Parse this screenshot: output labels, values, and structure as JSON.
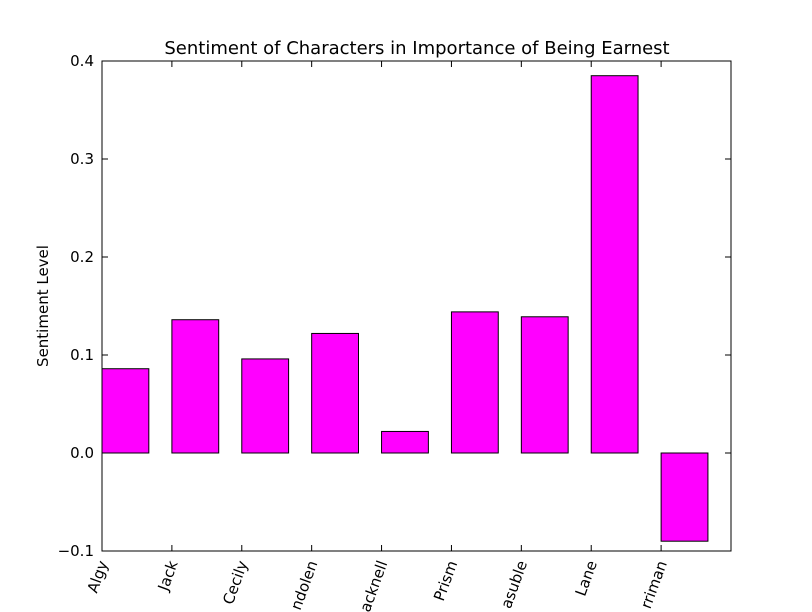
{
  "chart_data": {
    "type": "bar",
    "title": "Sentiment of Characters in Importance of Being Earnest",
    "y_label": "Sentiment Level",
    "categories": [
      "Algy",
      "Jack",
      "Cecily",
      "ndolen",
      "acknell",
      "Prism",
      "asuble",
      "Lane",
      "rriman"
    ],
    "values": [
      0.086,
      0.136,
      0.096,
      0.122,
      0.022,
      0.144,
      0.139,
      0.385,
      -0.09
    ],
    "color": "#ff00ff",
    "ylim": [
      -0.1,
      0.4
    ],
    "yticks": [
      {
        "value": -0.1,
        "label": "−0.1"
      },
      {
        "value": 0,
        "label": "0.0"
      },
      0.1,
      0.2,
      0.3,
      0.4
    ],
    "grid": false
  }
}
